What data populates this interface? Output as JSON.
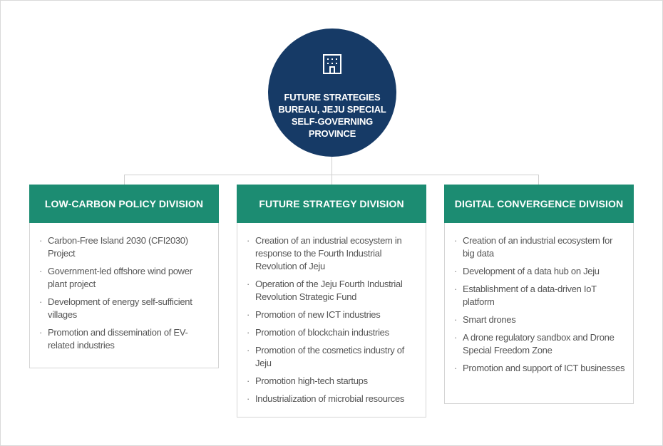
{
  "center": {
    "icon": "building-icon",
    "title": "FUTURE STRATEGIES BUREAU, JEJU SPECIAL SELF-GOVERNING PROVINCE"
  },
  "colors": {
    "navy": "#163a66",
    "green": "#1c8c72",
    "text": "#555555"
  },
  "divisions": [
    {
      "title": "LOW-CARBON POLICY DIVISION",
      "items": [
        "Carbon-Free Island 2030 (CFI2030) Project",
        "Government-led offshore wind power plant project",
        "Development of energy self-sufficient villages",
        "Promotion and dissemination of EV-related industries"
      ]
    },
    {
      "title": "FUTURE STRATEGY DIVISION",
      "items": [
        "Creation of an industrial ecosystem in response to the Fourth Industrial Revolution of Jeju",
        "Operation of the Jeju Fourth Industrial Revolution Strategic Fund",
        "Promotion of new ICT industries",
        "Promotion of blockchain industries",
        "Promotion of the cosmetics industry of Jeju",
        "Promotion high-tech startups",
        "Industrialization of microbial resources"
      ]
    },
    {
      "title": "DIGITAL CONVERGENCE DIVISION",
      "items": [
        "Creation of an industrial ecosystem for big data",
        "Development of a data hub on Jeju",
        "Establishment of a data-driven IoT platform",
        "Smart drones",
        "A drone regulatory sandbox and Drone Special Freedom Zone",
        "Promotion and support of ICT businesses"
      ]
    }
  ]
}
